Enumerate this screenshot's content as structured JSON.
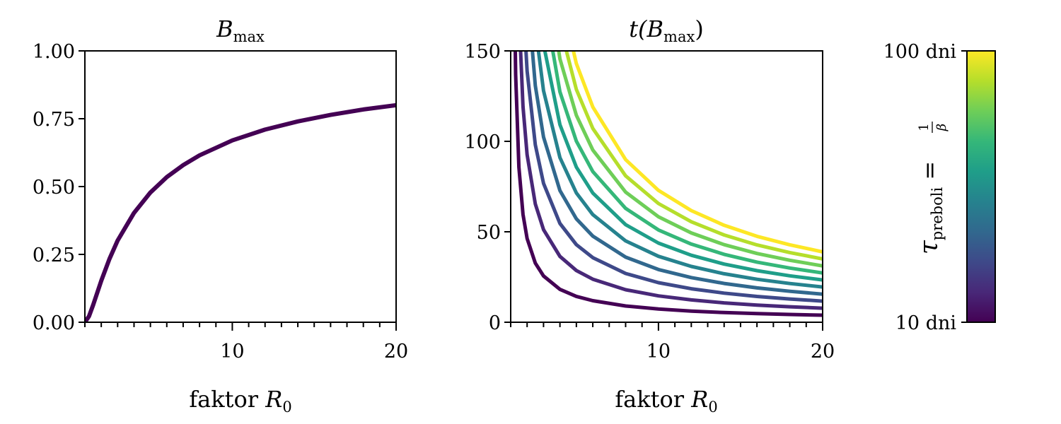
{
  "chart_data": [
    {
      "type": "line",
      "title": {
        "main": "B",
        "sub": "max"
      },
      "xlabel": {
        "prefix": "faktor ",
        "var": "R",
        "sub": "0"
      },
      "ylabel": "",
      "xlim": [
        1,
        20
      ],
      "ylim": [
        0,
        1
      ],
      "xticks": [
        10,
        20
      ],
      "xtick_labels": [
        "10",
        "20"
      ],
      "yticks": [
        0,
        0.25,
        0.5,
        0.75,
        1.0
      ],
      "ytick_labels": [
        "0.00",
        "0.25",
        "0.50",
        "0.75",
        "1.00"
      ],
      "color": "#440154",
      "x": [
        1,
        1.25,
        1.5,
        2,
        2.5,
        3,
        4,
        5,
        6,
        7,
        8,
        10,
        12,
        14,
        16,
        18,
        20
      ],
      "y": [
        0,
        0.022,
        0.063,
        0.153,
        0.233,
        0.301,
        0.403,
        0.478,
        0.535,
        0.579,
        0.615,
        0.67,
        0.71,
        0.74,
        0.764,
        0.784,
        0.8
      ]
    },
    {
      "type": "line",
      "title": {
        "pre": "t(",
        "main": "B",
        "sub": "max",
        "post": ")"
      },
      "xlabel": {
        "prefix": "faktor ",
        "var": "R",
        "sub": "0"
      },
      "xlim": [
        1,
        20
      ],
      "ylim": [
        0,
        150
      ],
      "xticks": [
        10,
        20
      ],
      "xtick_labels": [
        "10",
        "20"
      ],
      "yticks": [
        0,
        50,
        100,
        150
      ],
      "ytick_labels": [
        "0",
        "50",
        "100",
        "150"
      ],
      "x": [
        1.02,
        1.05,
        1.1,
        1.2,
        1.3,
        1.5,
        1.75,
        2,
        2.5,
        3,
        4,
        5,
        6,
        8,
        10,
        12,
        14,
        16,
        18,
        20
      ],
      "t_per_tau": [
        191,
        77.2,
        39.1,
        20.1,
        13.7,
        8.57,
        5.96,
        4.63,
        3.27,
        2.56,
        1.82,
        1.43,
        1.19,
        0.899,
        0.729,
        0.617,
        0.536,
        0.475,
        0.428,
        0.389
      ],
      "series": [
        {
          "tau": 10,
          "color": "#440154"
        },
        {
          "tau": 20,
          "color": "#482878"
        },
        {
          "tau": 30,
          "color": "#3e4989"
        },
        {
          "tau": 40,
          "color": "#31688e"
        },
        {
          "tau": 50,
          "color": "#26828e"
        },
        {
          "tau": 60,
          "color": "#1f9e89"
        },
        {
          "tau": 70,
          "color": "#35b779"
        },
        {
          "tau": 80,
          "color": "#6ece58"
        },
        {
          "tau": 90,
          "color": "#b5de2b"
        },
        {
          "tau": 100,
          "color": "#fde725"
        }
      ]
    }
  ],
  "colorbar": {
    "label": {
      "var": "τ",
      "sub": "preboli",
      "eq": " = ",
      "num": "1",
      "den": "β"
    },
    "top_label": "100 dni",
    "bottom_label": "10 dni",
    "range": [
      10,
      100
    ],
    "colors": [
      "#440154",
      "#482878",
      "#3e4989",
      "#31688e",
      "#26828e",
      "#1f9e89",
      "#35b779",
      "#6ece58",
      "#b5de2b",
      "#fde725"
    ]
  }
}
